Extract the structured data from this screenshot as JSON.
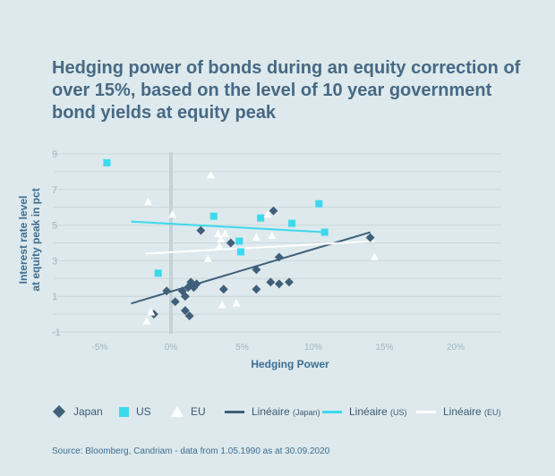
{
  "title": "Hedging power of bonds during an equity correction of over 15%, based on the level of 10 year government bond yields at equity peak",
  "source": "Source: Bloomberg, Candriam - data from 1.05.1990 as at 30.09.2020",
  "colors": {
    "japan": "#3f5f7a",
    "us": "#3ad9ec",
    "eu": "#ffffff",
    "grid": "#c9d8dd",
    "axis_text": "#9fb5c0",
    "zero_line": "#c5d2d6"
  },
  "chart_data": {
    "type": "scatter",
    "title": "Hedging power of bonds during an equity correction of over 15%, based on the level of 10 year government bond yields at equity peak",
    "xlabel": "Hedging Power",
    "ylabel_lines": [
      "Interest rate level",
      "at equity peak in pct"
    ],
    "xlim": [
      -0.08,
      0.22
    ],
    "ylim": [
      -1,
      9
    ],
    "x_ticks": [
      {
        "value": -0.05,
        "label": "-5%"
      },
      {
        "value": 0,
        "label": "0%"
      },
      {
        "value": 0.05,
        "label": "5%"
      },
      {
        "value": 0.1,
        "label": "10%"
      },
      {
        "value": 0.15,
        "label": "15%"
      },
      {
        "value": 0.2,
        "label": "20%"
      }
    ],
    "y_ticks": [
      {
        "value": -1,
        "label": "-1"
      },
      {
        "value": 1,
        "label": "1"
      },
      {
        "value": 3,
        "label": "3"
      },
      {
        "value": 5,
        "label": "5"
      },
      {
        "value": 7,
        "label": "7"
      },
      {
        "value": 9,
        "label": "9"
      }
    ],
    "series": [
      {
        "name": "Japan",
        "marker": "diamond",
        "points": [
          [
            -0.012,
            0
          ],
          [
            -0.003,
            1.3
          ],
          [
            0.003,
            0.7
          ],
          [
            0.008,
            1.3
          ],
          [
            0.01,
            0.2
          ],
          [
            0.01,
            1.0
          ],
          [
            0.012,
            1.5
          ],
          [
            0.013,
            -0.1
          ],
          [
            0.014,
            1.8
          ],
          [
            0.016,
            1.5
          ],
          [
            0.018,
            1.7
          ],
          [
            0.021,
            4.7
          ],
          [
            0.042,
            4.0
          ],
          [
            0.037,
            1.4
          ],
          [
            0.06,
            1.4
          ],
          [
            0.06,
            2.5
          ],
          [
            0.07,
            1.8
          ],
          [
            0.072,
            5.8
          ],
          [
            0.076,
            1.7
          ],
          [
            0.076,
            3.2
          ],
          [
            0.083,
            1.8
          ],
          [
            0.14,
            4.3
          ]
        ]
      },
      {
        "name": "US",
        "marker": "square",
        "points": [
          [
            -0.045,
            8.5
          ],
          [
            -0.009,
            2.3
          ],
          [
            0.03,
            5.5
          ],
          [
            0.048,
            4.1
          ],
          [
            0.049,
            3.5
          ],
          [
            0.063,
            5.4
          ],
          [
            0.085,
            5.1
          ],
          [
            0.104,
            6.2
          ],
          [
            0.108,
            4.6
          ]
        ]
      },
      {
        "name": "EU",
        "marker": "triangle",
        "points": [
          [
            -0.016,
            6.3
          ],
          [
            -0.017,
            -0.4
          ],
          [
            -0.014,
            0.1
          ],
          [
            0.001,
            5.6
          ],
          [
            0.026,
            3.1
          ],
          [
            0.028,
            7.8
          ],
          [
            0.033,
            4.5
          ],
          [
            0.034,
            3.8
          ],
          [
            0.035,
            4.2
          ],
          [
            0.036,
            0.5
          ],
          [
            0.038,
            4.5
          ],
          [
            0.046,
            0.6
          ],
          [
            0.06,
            4.3
          ],
          [
            0.068,
            5.6
          ],
          [
            0.071,
            4.4
          ],
          [
            0.143,
            3.2
          ]
        ]
      }
    ],
    "trendlines": [
      {
        "name": "Linéaire",
        "suffix": "(Japan)",
        "from": [
          -0.028,
          0.6
        ],
        "to": [
          0.14,
          4.6
        ]
      },
      {
        "name": "Linéaire",
        "suffix": "(US)",
        "from": [
          -0.028,
          5.2
        ],
        "to": [
          0.108,
          4.6
        ]
      },
      {
        "name": "Linéaire",
        "suffix": "(EU)",
        "from": [
          -0.018,
          3.4
        ],
        "to": [
          0.143,
          4.1
        ]
      }
    ]
  },
  "legend": {
    "japan": "Japan",
    "us": "US",
    "eu": "EU",
    "lin_label": "Linéaire",
    "lin_japan": "(Japan)",
    "lin_us": "(US)",
    "lin_eu": "(EU)"
  }
}
